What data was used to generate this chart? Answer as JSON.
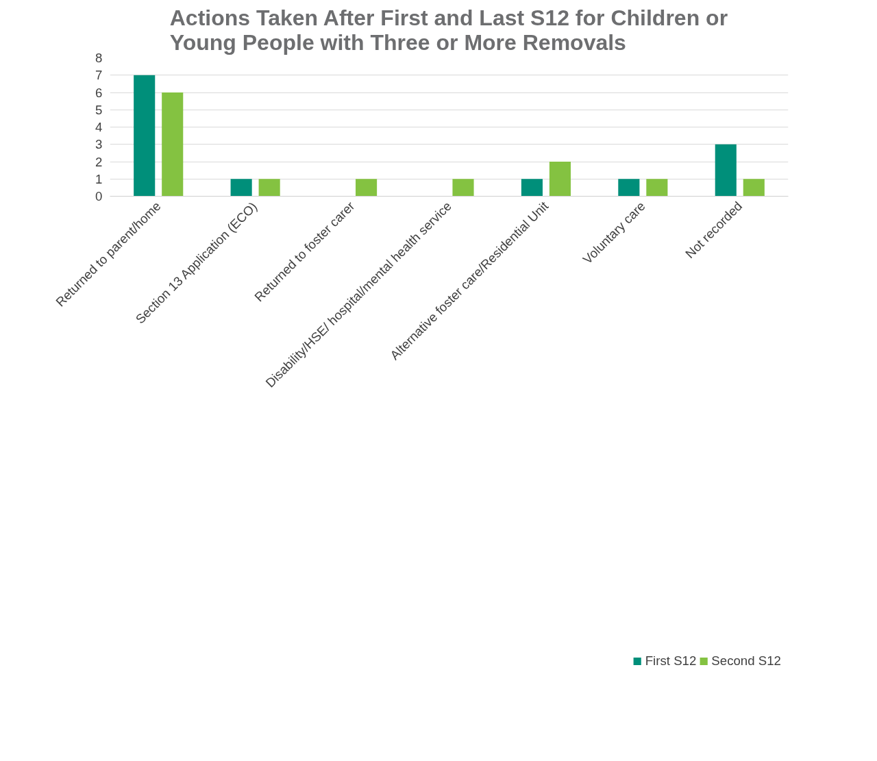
{
  "chart_data": {
    "type": "bar",
    "title": "Actions Taken After First and Last S12 for Children or\nYoung People with Three or More Removals",
    "categories": [
      "Returned to parent/home",
      "Section 13 Application (ECO)",
      "Returned to foster carer",
      "Disability/HSE/ hospital/mental health service",
      "Alternative foster care/Residential Unit",
      "Voluntary care",
      "Not recorded"
    ],
    "series": [
      {
        "name": "First S12",
        "color": "#008f7a",
        "values": [
          7,
          1,
          null,
          null,
          1,
          1,
          3
        ]
      },
      {
        "name": "Second S12",
        "color": "#84c241",
        "values": [
          6,
          1,
          1,
          1,
          2,
          1,
          1
        ]
      }
    ],
    "ylim": [
      0,
      8
    ],
    "yticks": [
      0,
      1,
      2,
      3,
      4,
      5,
      6,
      7,
      8
    ],
    "grid": "y",
    "legend": "bottom right"
  }
}
